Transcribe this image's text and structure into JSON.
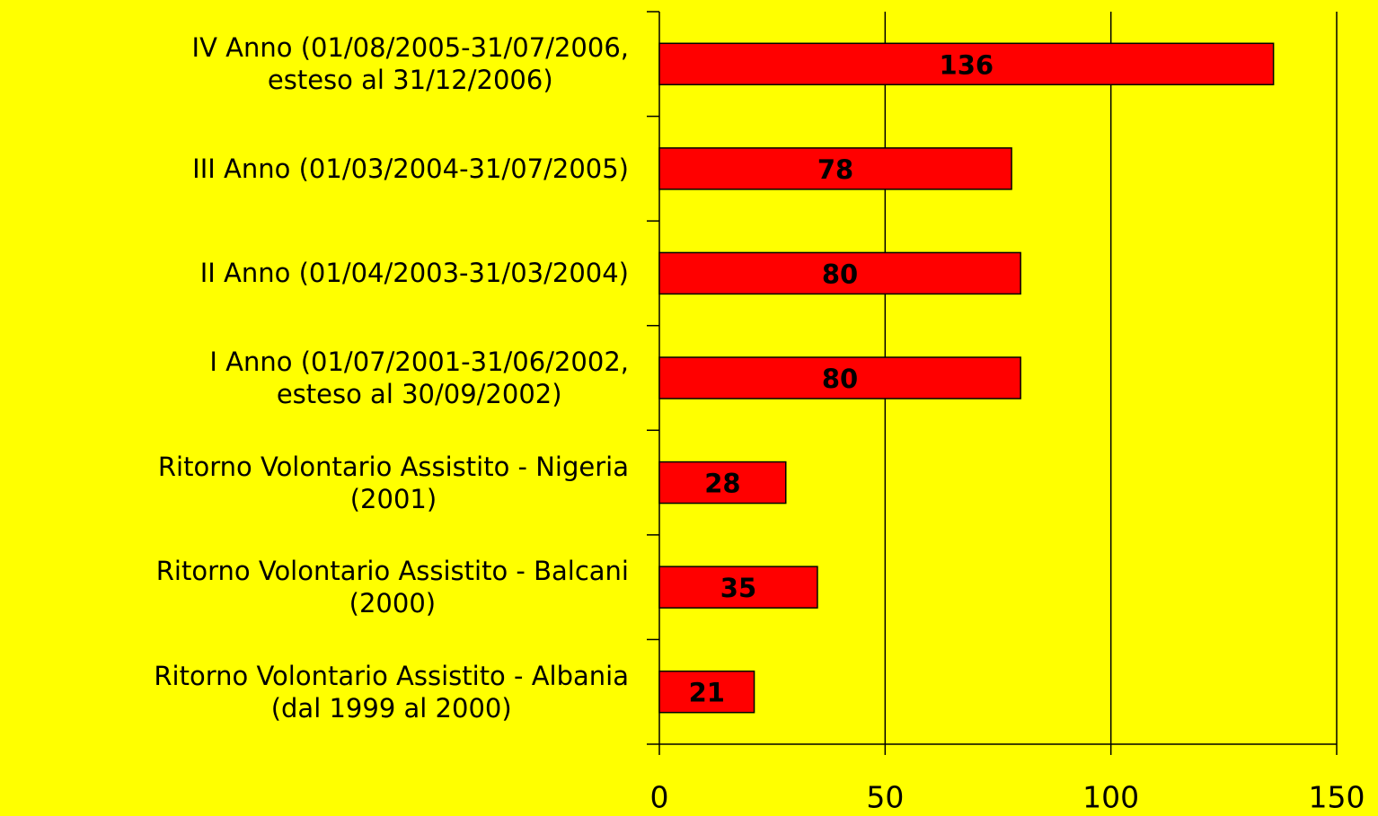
{
  "chart_data": {
    "type": "barh",
    "categories": [
      "IV Anno (01/08/2005-31/07/2006,\nesteso al 31/12/2006)",
      "III Anno (01/03/2004-31/07/2005)",
      "II Anno (01/04/2003-31/03/2004)",
      "I Anno (01/07/2001-31/06/2002,\nesteso al 30/09/2002)",
      "Ritorno Volontario Assistito - Nigeria\n(2001)",
      "Ritorno Volontario Assistito - Balcani\n(2000)",
      "Ritorno Volontario Assistito - Albania\n(dal 1999 al 2000)"
    ],
    "values": [
      136,
      78,
      80,
      80,
      28,
      35,
      21
    ],
    "color": "#ff0000",
    "xlim": [
      0,
      150
    ],
    "xticks": [
      0,
      50,
      100,
      150
    ],
    "grid": true
  }
}
